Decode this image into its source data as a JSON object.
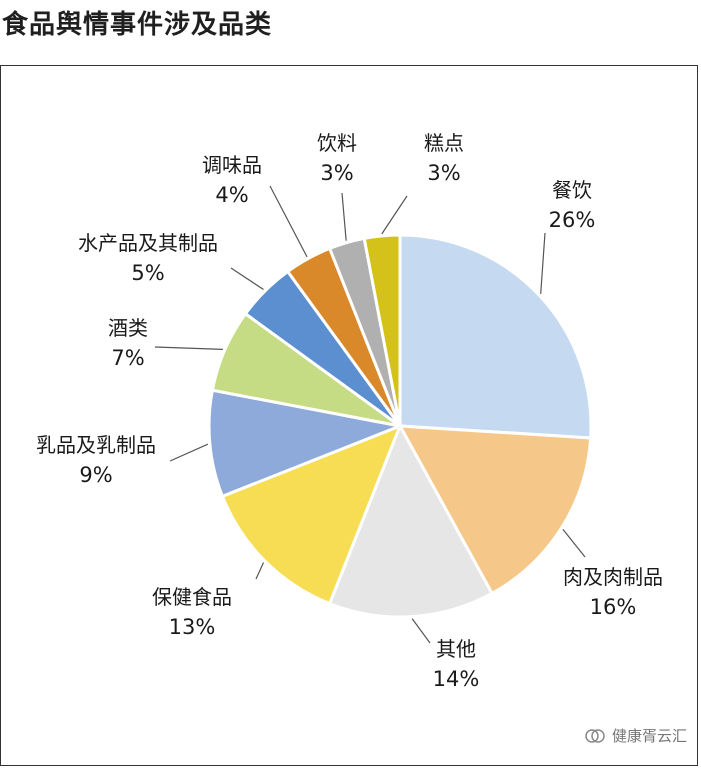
{
  "title": "食品舆情事件涉及品类",
  "watermark": "健康胥云汇",
  "chart_data": {
    "type": "pie",
    "title": "食品舆情事件涉及品类",
    "slices": [
      {
        "label": "餐饮",
        "pct_label": "26%",
        "value": 26,
        "color": "#c5d9f1"
      },
      {
        "label": "肉及肉制品",
        "pct_label": "16%",
        "value": 16,
        "color": "#f5c88a"
      },
      {
        "label": "其他",
        "pct_label": "14%",
        "value": 14,
        "color": "#e6e6e6"
      },
      {
        "label": "保健食品",
        "pct_label": "13%",
        "value": 13,
        "color": "#f7dd54"
      },
      {
        "label": "乳品及乳制品",
        "pct_label": "9%",
        "value": 9,
        "color": "#8eaadb"
      },
      {
        "label": "酒类",
        "pct_label": "7%",
        "value": 7,
        "color": "#c6dc84"
      },
      {
        "label": "水产品及其制品",
        "pct_label": "5%",
        "value": 5,
        "color": "#5b8fd0"
      },
      {
        "label": "调味品",
        "pct_label": "4%",
        "value": 4,
        "color": "#d9892a"
      },
      {
        "label": "饮料",
        "pct_label": "3%",
        "value": 3,
        "color": "#b0b0b0"
      },
      {
        "label": "糕点",
        "pct_label": "3%",
        "value": 3,
        "color": "#d4c21a"
      }
    ]
  }
}
